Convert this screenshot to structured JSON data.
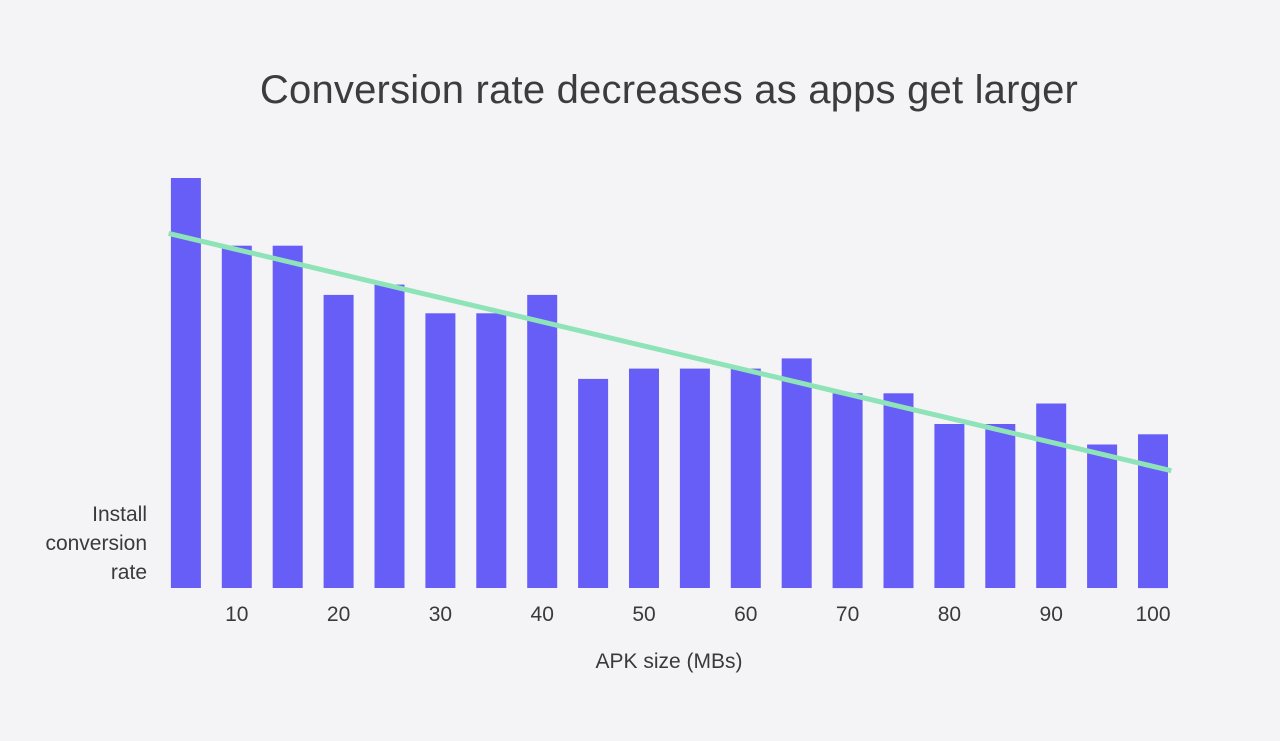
{
  "chart_data": {
    "type": "bar",
    "title": "Conversion rate decreases as apps get larger",
    "xlabel": "APK size (MBs)",
    "ylabel_lines": [
      "Install",
      "conversion",
      "rate"
    ],
    "x": [
      5,
      10,
      15,
      20,
      25,
      30,
      35,
      40,
      45,
      50,
      55,
      60,
      65,
      70,
      75,
      80,
      85,
      90,
      95,
      100
    ],
    "x_tick_labels": [
      "10",
      "20",
      "30",
      "40",
      "50",
      "60",
      "70",
      "80",
      "90",
      "100"
    ],
    "x_tick_values": [
      10,
      20,
      30,
      40,
      50,
      60,
      70,
      80,
      90,
      100
    ],
    "values": [
      100,
      83.5,
      83.5,
      71.5,
      74,
      67,
      67,
      71.5,
      51,
      53.5,
      53.5,
      53.5,
      56,
      47.5,
      47.5,
      40,
      40,
      45,
      35,
      37.5
    ],
    "ylim": [
      0,
      100
    ],
    "trendline": {
      "start": [
        3.3,
        86.5
      ],
      "end": [
        101.8,
        28.6
      ]
    },
    "grid": false,
    "legend": "none",
    "colors": {
      "bar": "#665ef7",
      "trendline": "#8fe3b8",
      "background": "#f4f4f6"
    }
  }
}
